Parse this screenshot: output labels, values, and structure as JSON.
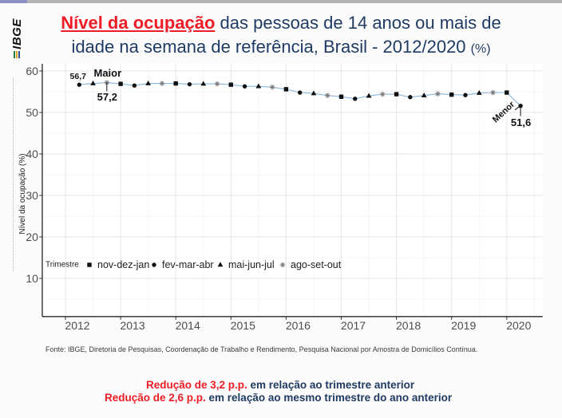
{
  "logo": {
    "text": "IBGE"
  },
  "title": {
    "highlight": "Nível da ocupação",
    "line1_rest": " das pessoas de 14 anos ou mais de",
    "line2": "idade na semana de referência, Brasil - 2012/2020",
    "unit": "(%)"
  },
  "colors": {
    "accent_red": "#ee1c25",
    "title_blue": "#1f3b63",
    "series_line": "#87b5dc",
    "marker": "#111111",
    "asterisk_marker": "#777777"
  },
  "chart_data": {
    "type": "line",
    "title": "Nível da ocupação das pessoas de 14 anos ou mais de idade na semana de referência, Brasil - 2012/2020 (%)",
    "xlabel": "",
    "ylabel": "Nível da ocupação (%)",
    "x_ticks": [
      2012,
      2013,
      2014,
      2015,
      2016,
      2017,
      2018,
      2019,
      2020
    ],
    "y_ticks": [
      10,
      20,
      30,
      40,
      50,
      60
    ],
    "xlim": [
      2011.58,
      2020.65
    ],
    "ylim": [
      0.8,
      61.7
    ],
    "grid": true,
    "legend": {
      "title": "Trimestre",
      "placement": "inside-bottom-left",
      "entries": [
        {
          "label": "nov-dez-jan",
          "shape": "square"
        },
        {
          "label": "fev-mar-abr",
          "shape": "circle"
        },
        {
          "label": "mai-jun-jul",
          "shape": "triangle"
        },
        {
          "label": "ago-set-out",
          "shape": "asterisk"
        }
      ]
    },
    "series": [
      {
        "name": "Nível da ocupação",
        "points": [
          {
            "t": 2012.25,
            "trimestre": "fev-mar-abr",
            "value": 56.7
          },
          {
            "t": 2012.5,
            "trimestre": "mai-jun-jul",
            "value": 57.0
          },
          {
            "t": 2012.75,
            "trimestre": "ago-set-out",
            "value": 57.2
          },
          {
            "t": 2013.0,
            "trimestre": "nov-dez-jan",
            "value": 56.9
          },
          {
            "t": 2013.25,
            "trimestre": "fev-mar-abr",
            "value": 56.5
          },
          {
            "t": 2013.5,
            "trimestre": "mai-jun-jul",
            "value": 57.0
          },
          {
            "t": 2013.75,
            "trimestre": "ago-set-out",
            "value": 57.0
          },
          {
            "t": 2014.0,
            "trimestre": "nov-dez-jan",
            "value": 57.0
          },
          {
            "t": 2014.25,
            "trimestre": "fev-mar-abr",
            "value": 56.8
          },
          {
            "t": 2014.5,
            "trimestre": "mai-jun-jul",
            "value": 56.9
          },
          {
            "t": 2014.75,
            "trimestre": "ago-set-out",
            "value": 56.9
          },
          {
            "t": 2015.0,
            "trimestre": "nov-dez-jan",
            "value": 56.7
          },
          {
            "t": 2015.25,
            "trimestre": "fev-mar-abr",
            "value": 56.3
          },
          {
            "t": 2015.5,
            "trimestre": "mai-jun-jul",
            "value": 56.3
          },
          {
            "t": 2015.75,
            "trimestre": "ago-set-out",
            "value": 56.1
          },
          {
            "t": 2016.0,
            "trimestre": "nov-dez-jan",
            "value": 55.6
          },
          {
            "t": 2016.25,
            "trimestre": "fev-mar-abr",
            "value": 54.8
          },
          {
            "t": 2016.5,
            "trimestre": "mai-jun-jul",
            "value": 54.6
          },
          {
            "t": 2016.75,
            "trimestre": "ago-set-out",
            "value": 54.1
          },
          {
            "t": 2017.0,
            "trimestre": "nov-dez-jan",
            "value": 53.8
          },
          {
            "t": 2017.25,
            "trimestre": "fev-mar-abr",
            "value": 53.3
          },
          {
            "t": 2017.5,
            "trimestre": "mai-jun-jul",
            "value": 54.0
          },
          {
            "t": 2017.75,
            "trimestre": "ago-set-out",
            "value": 54.4
          },
          {
            "t": 2018.0,
            "trimestre": "nov-dez-jan",
            "value": 54.4
          },
          {
            "t": 2018.25,
            "trimestre": "fev-mar-abr",
            "value": 53.7
          },
          {
            "t": 2018.5,
            "trimestre": "mai-jun-jul",
            "value": 54.1
          },
          {
            "t": 2018.75,
            "trimestre": "ago-set-out",
            "value": 54.5
          },
          {
            "t": 2019.0,
            "trimestre": "nov-dez-jan",
            "value": 54.3
          },
          {
            "t": 2019.25,
            "trimestre": "fev-mar-abr",
            "value": 54.2
          },
          {
            "t": 2019.5,
            "trimestre": "mai-jun-jul",
            "value": 54.7
          },
          {
            "t": 2019.75,
            "trimestre": "ago-set-out",
            "value": 54.8
          },
          {
            "t": 2020.0,
            "trimestre": "nov-dez-jan",
            "value": 54.8
          },
          {
            "t": 2020.25,
            "trimestre": "fev-mar-abr",
            "value": 51.6
          }
        ]
      }
    ],
    "annotations": [
      {
        "text": "56,7",
        "point": 0,
        "role": "value-label"
      },
      {
        "text": "Maior",
        "point": 2,
        "role": "max-label"
      },
      {
        "text": "57,2",
        "point": 2,
        "role": "max-value"
      },
      {
        "text": "Menor",
        "point": 32,
        "role": "min-label"
      },
      {
        "text": "51,6",
        "point": 32,
        "role": "min-value"
      }
    ]
  },
  "source": "Fonte: IBGE, Diretoria de Pesquisas, Coordenação de Trabalho e Rendimento, Pesquisa Nacional por Amostra de Domicílios Contínua.",
  "highlights": [
    {
      "red": "Redução de 3,2 p.p.",
      "blue": " em relação ao trimestre anterior"
    },
    {
      "red": "Redução de 2,6 p.p.",
      "blue": " em relação ao mesmo trimestre do ano anterior"
    }
  ]
}
